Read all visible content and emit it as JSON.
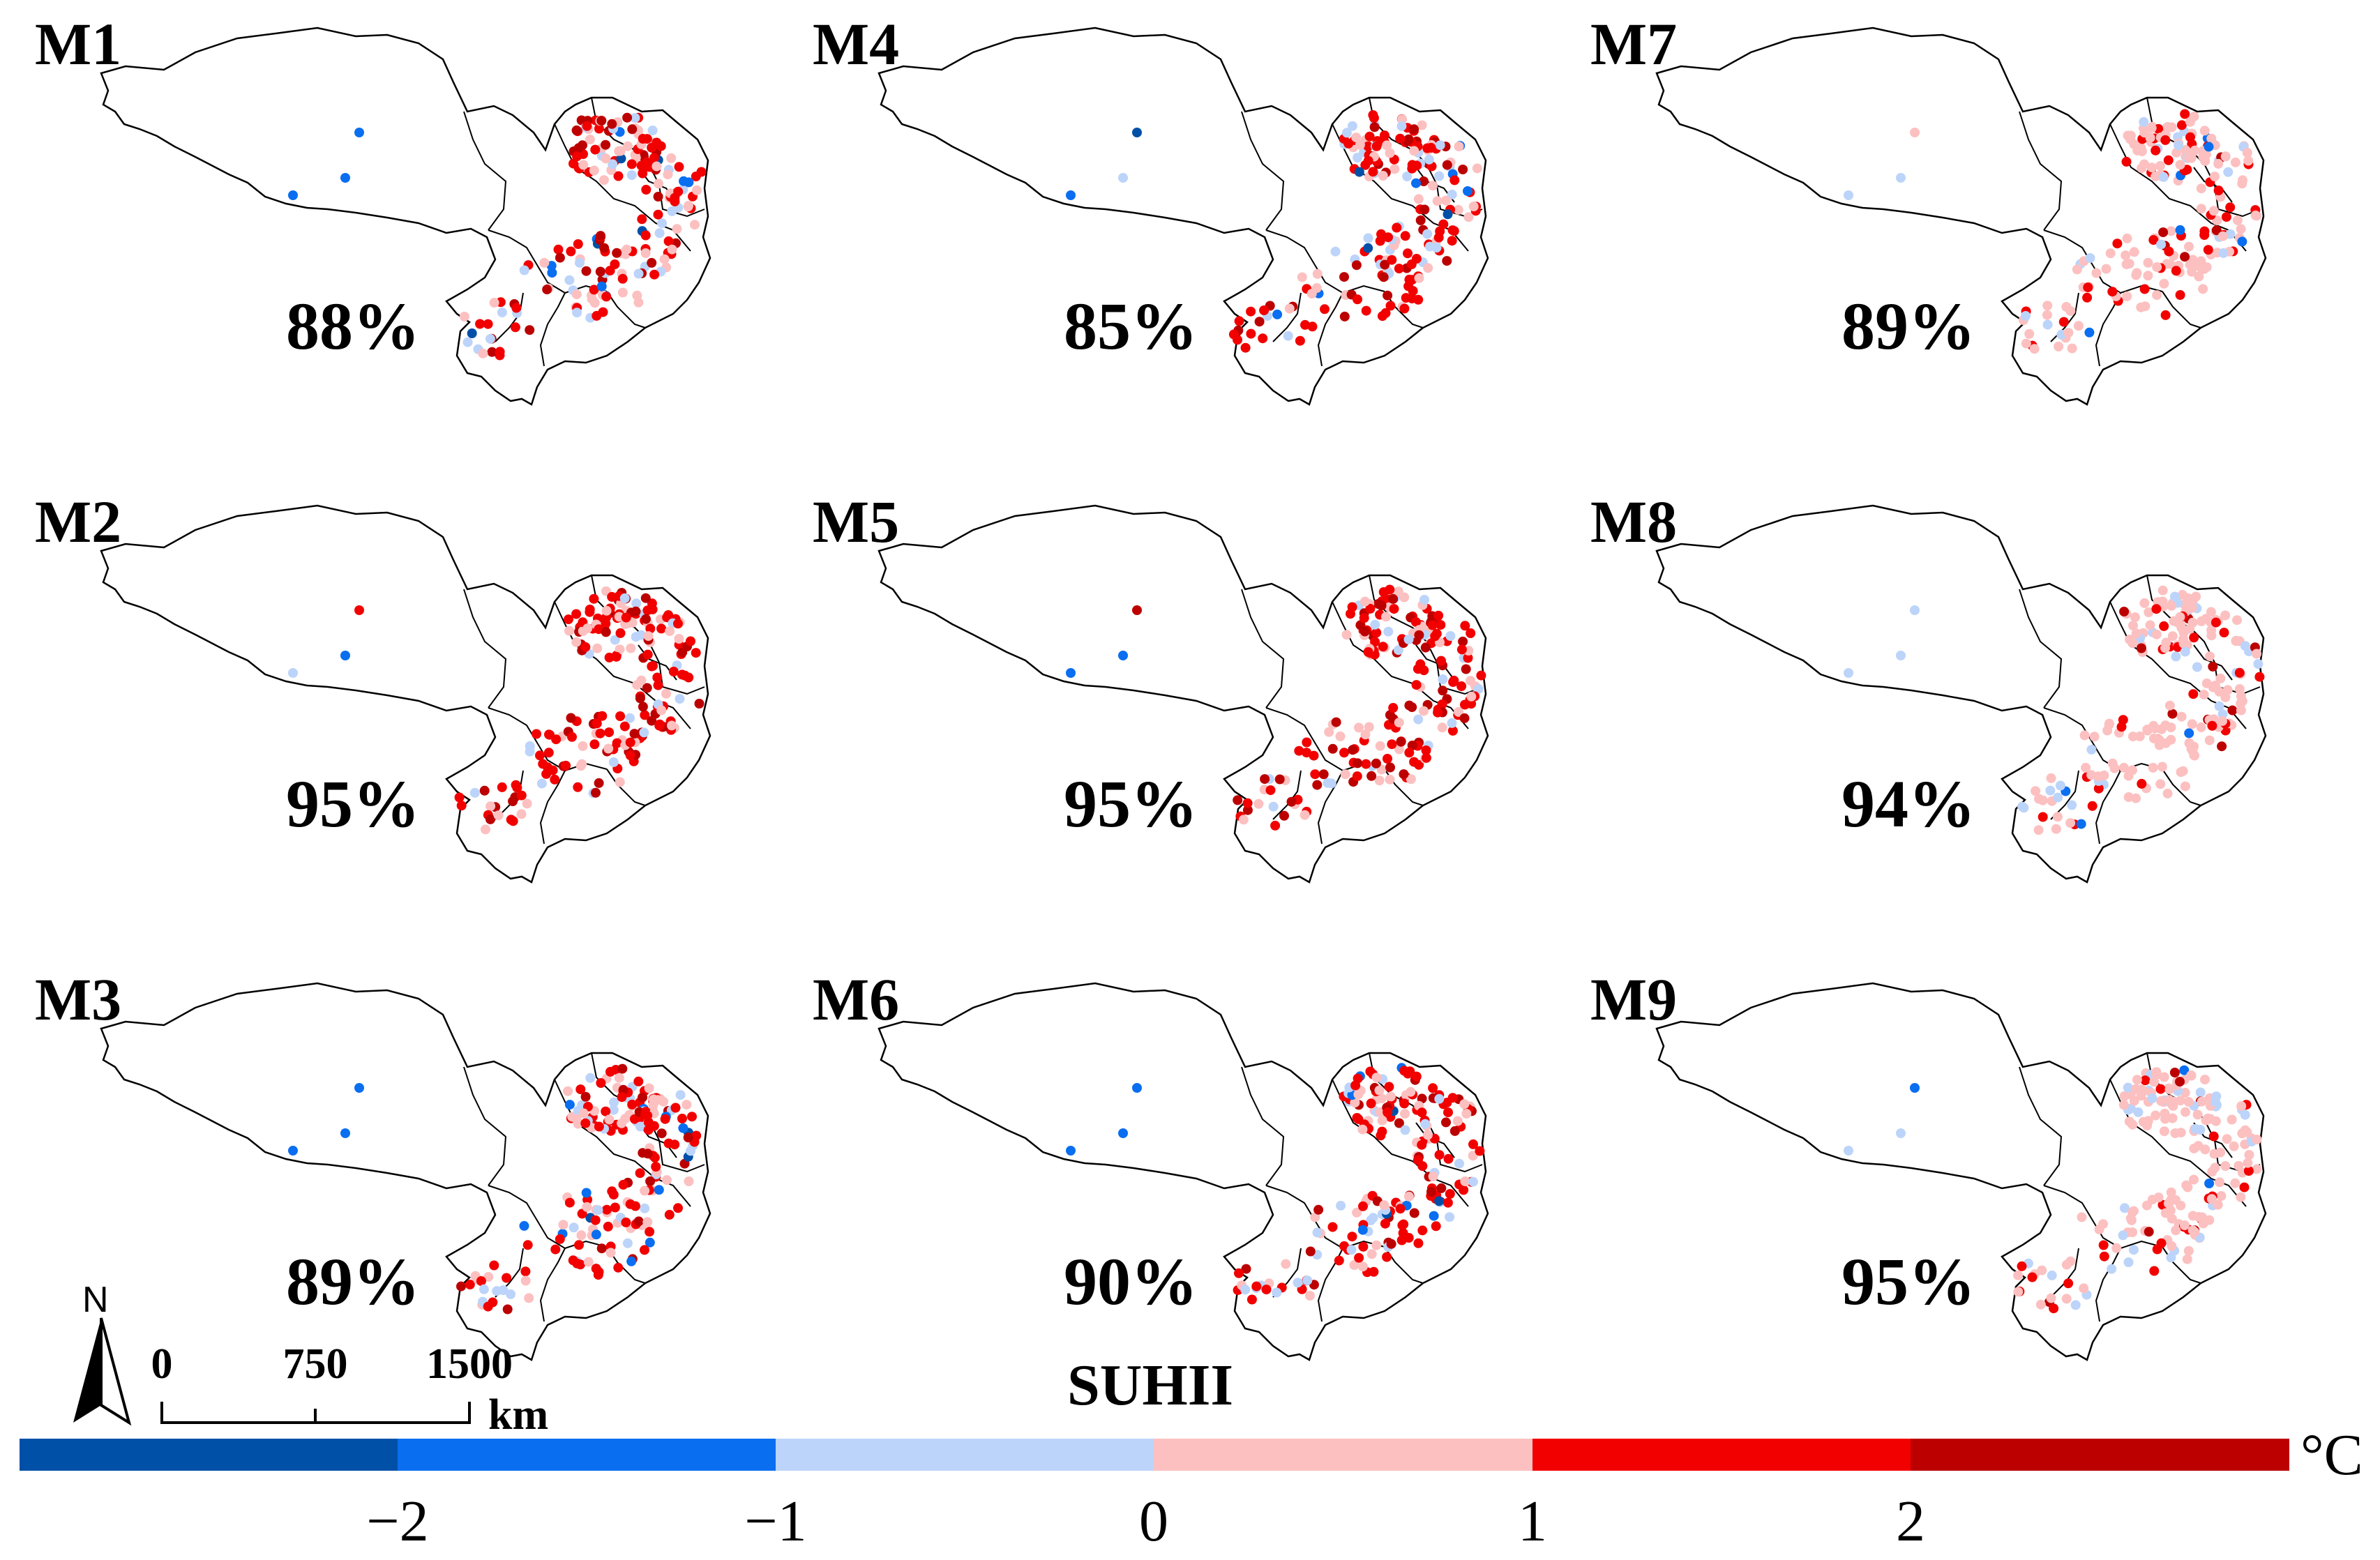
{
  "figure": {
    "panels": [
      {
        "label": "M1",
        "percent": "88%",
        "tibet_colors": [
          "blue",
          "blue",
          "blue"
        ],
        "cities": "mixed"
      },
      {
        "label": "M4",
        "percent": "85%",
        "tibet_colors": [
          "blue",
          "lightblue",
          "darkblue"
        ],
        "cities": "mixed"
      },
      {
        "label": "M7",
        "percent": "89%",
        "tibet_colors": [
          "lightblue",
          "lightblue",
          "pink"
        ],
        "cities": "pink"
      },
      {
        "label": "M2",
        "percent": "95%",
        "tibet_colors": [
          "lightblue",
          "blue",
          "red"
        ],
        "cities": "red"
      },
      {
        "label": "M5",
        "percent": "95%",
        "tibet_colors": [
          "blue",
          "blue",
          "darkred"
        ],
        "cities": "red"
      },
      {
        "label": "M8",
        "percent": "94%",
        "tibet_colors": [
          "lightblue",
          "lightblue",
          "lightblue"
        ],
        "cities": "pink"
      },
      {
        "label": "M3",
        "percent": "89%",
        "tibet_colors": [
          "blue",
          "blue",
          "blue"
        ],
        "cities": "mixed"
      },
      {
        "label": "M6",
        "percent": "90%",
        "tibet_colors": [
          "blue",
          "blue",
          "blue"
        ],
        "cities": "mixed"
      },
      {
        "label": "M9",
        "percent": "95%",
        "tibet_colors": [
          "lightblue",
          "lightblue",
          "blue"
        ],
        "cities": "pink"
      }
    ],
    "legend": {
      "title": "SUHII",
      "unit": "°C",
      "ticks": [
        "−2",
        "−1",
        "0",
        "1",
        "2"
      ],
      "bins": [
        {
          "range": "< −2",
          "color": "#0050a8"
        },
        {
          "range": "−2 to −1",
          "color": "#0a6ef0"
        },
        {
          "range": "−1 to 0",
          "color": "#bcd4fa"
        },
        {
          "range": "0 to 1",
          "color": "#fcc0c0"
        },
        {
          "range": "1 to 2",
          "color": "#f20000"
        },
        {
          "range": "> 2",
          "color": "#bc0000"
        }
      ]
    },
    "north_arrow": {
      "label": "N"
    },
    "scale_bar": {
      "ticks": [
        "0",
        "750",
        "1500"
      ],
      "unit": "km"
    }
  }
}
